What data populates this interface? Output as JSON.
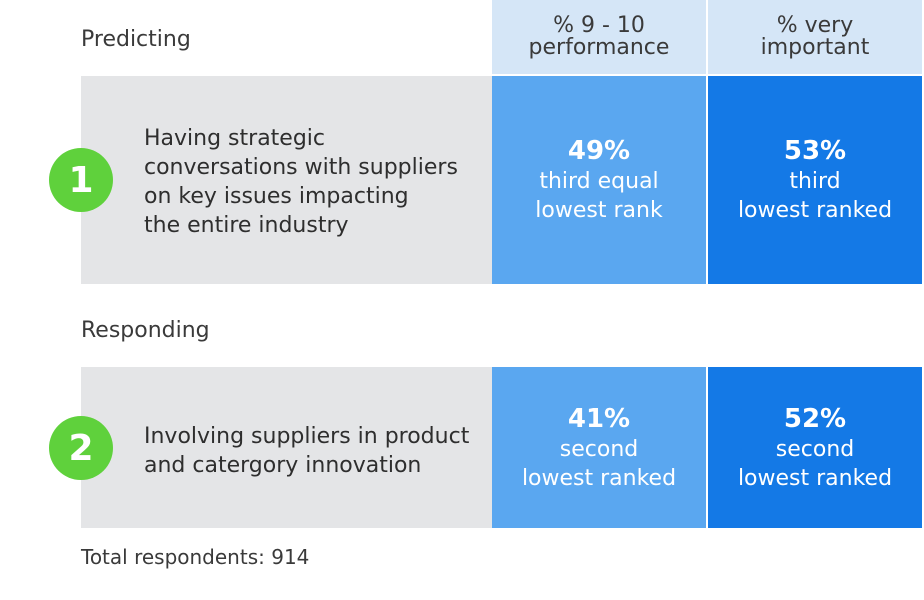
{
  "columns": {
    "performance": {
      "line1": "% 9 - 10",
      "line2": "performance"
    },
    "importance": {
      "line1": "% very",
      "line2": "important"
    }
  },
  "sections": [
    {
      "label": "Predicting",
      "badge": "1",
      "text_lines": [
        "Having strategic",
        "conversations with suppliers",
        "on key issues impacting",
        "the entire industry"
      ],
      "performance": {
        "pct": "49%",
        "rank_lines": [
          "third equal",
          "lowest rank"
        ]
      },
      "importance": {
        "pct": "53%",
        "rank_lines": [
          "third",
          "lowest ranked"
        ]
      }
    },
    {
      "label": "Responding",
      "badge": "2",
      "text_lines": [
        "Involving suppliers in product",
        "and catergory innovation"
      ],
      "performance": {
        "pct": "41%",
        "rank_lines": [
          "second",
          "lowest ranked"
        ]
      },
      "importance": {
        "pct": "52%",
        "rank_lines": [
          "second",
          "lowest ranked"
        ]
      }
    }
  ],
  "footnote": "Total respondents: 914",
  "colors": {
    "header_bg": "#d5e6f7",
    "desc_bg": "#e4e5e7",
    "performance_bg": "#5aa7f0",
    "importance_bg": "#1479e6",
    "badge_bg": "#5fd13c"
  }
}
